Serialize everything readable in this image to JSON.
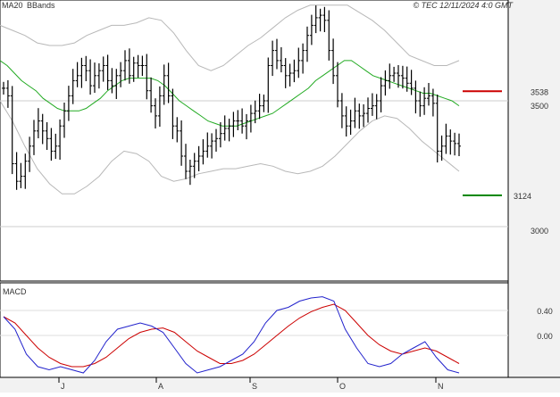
{
  "header": {
    "ma_label": "MA20",
    "bb_label": "BBands",
    "copyright": "© TEC 12/11/2024 4:0 GMT"
  },
  "price_panel": {
    "y_ticks": [
      "3500",
      "3000"
    ],
    "resistance": {
      "label": "3538",
      "value": 3538,
      "color": "#cc0000"
    },
    "support": {
      "label": "3124",
      "value": 3124,
      "color": "#008800"
    }
  },
  "macd_panel": {
    "title": "MACD",
    "y_ticks": [
      "0.40",
      "0.00"
    ]
  },
  "x_axis": {
    "months": [
      "J",
      "A",
      "S",
      "O",
      "N"
    ]
  },
  "colors": {
    "ma": "#22aa22",
    "bands": "#b8b8b8",
    "candles": "#000000",
    "macd": "#2222cc",
    "signal": "#cc0000",
    "axis_bg": "#ffffff",
    "chart_bg": "#ffffff"
  },
  "chart_data": [
    {
      "type": "line",
      "title": "",
      "y_ticks": [
        3000,
        3500
      ],
      "ylim": [
        2700,
        3920
      ],
      "months": [
        "J",
        "A",
        "S",
        "O",
        "N"
      ],
      "ohlc_close": [
        3550,
        3520,
        3250,
        3180,
        3200,
        3260,
        3320,
        3380,
        3420,
        3380,
        3350,
        3300,
        3320,
        3400,
        3460,
        3520,
        3580,
        3600,
        3640,
        3620,
        3560,
        3600,
        3620,
        3640,
        3580,
        3560,
        3600,
        3620,
        3660,
        3600,
        3650,
        3640,
        3640,
        3540,
        3480,
        3440,
        3520,
        3600,
        3520,
        3400,
        3380,
        3280,
        3220,
        3240,
        3260,
        3280,
        3300,
        3320,
        3340,
        3350,
        3370,
        3390,
        3400,
        3420,
        3420,
        3400,
        3420,
        3450,
        3460,
        3480,
        3500,
        3640,
        3700,
        3660,
        3640,
        3600,
        3610,
        3620,
        3660,
        3700,
        3760,
        3800,
        3830,
        3840,
        3820,
        3700,
        3600,
        3500,
        3440,
        3400,
        3420,
        3460,
        3440,
        3450,
        3470,
        3480,
        3500,
        3560,
        3580,
        3600,
        3610,
        3600,
        3590,
        3570,
        3550,
        3500,
        3480,
        3510,
        3520,
        3490,
        3300,
        3320,
        3360,
        3340,
        3330,
        3320
      ],
      "ma20": [
        3660,
        3640,
        3610,
        3580,
        3560,
        3540,
        3510,
        3490,
        3470,
        3460,
        3460,
        3460,
        3470,
        3490,
        3510,
        3540,
        3560,
        3580,
        3590,
        3590,
        3590,
        3590,
        3580,
        3560,
        3530,
        3500,
        3480,
        3460,
        3440,
        3420,
        3410,
        3400,
        3400,
        3400,
        3410,
        3420,
        3430,
        3440,
        3450,
        3470,
        3490,
        3510,
        3530,
        3550,
        3580,
        3600,
        3620,
        3640,
        3660,
        3660,
        3640,
        3620,
        3600,
        3590,
        3580,
        3570,
        3560,
        3550,
        3540,
        3530,
        3530,
        3520,
        3510,
        3500,
        3480
      ],
      "bb_upper": [
        3800,
        3780,
        3760,
        3730,
        3720,
        3720,
        3730,
        3760,
        3780,
        3800,
        3800,
        3810,
        3830,
        3820,
        3770,
        3700,
        3640,
        3620,
        3640,
        3680,
        3720,
        3750,
        3790,
        3830,
        3860,
        3880,
        3880,
        3880,
        3880,
        3850,
        3820,
        3780,
        3730,
        3680,
        3660,
        3640,
        3640,
        3660
      ],
      "bb_lower": [
        3500,
        3420,
        3320,
        3230,
        3170,
        3130,
        3130,
        3160,
        3200,
        3260,
        3300,
        3290,
        3260,
        3200,
        3180,
        3190,
        3210,
        3220,
        3230,
        3230,
        3240,
        3250,
        3240,
        3220,
        3210,
        3220,
        3240,
        3280,
        3330,
        3380,
        3420,
        3440,
        3430,
        3390,
        3340,
        3300,
        3260,
        3220
      ],
      "series": []
    },
    {
      "type": "line",
      "title": "MACD",
      "y_ticks": [
        0.0,
        0.4
      ],
      "ylim": [
        -0.8,
        0.75
      ],
      "series": [
        {
          "values": [
            0.3,
            0.1,
            -0.3,
            -0.5,
            -0.55,
            -0.5,
            -0.55,
            -0.6,
            -0.4,
            -0.1,
            0.1,
            0.15,
            0.2,
            0.15,
            0.05,
            -0.2,
            -0.45,
            -0.6,
            -0.55,
            -0.5,
            -0.4,
            -0.3,
            -0.1,
            0.2,
            0.4,
            0.45,
            0.55,
            0.6,
            0.62,
            0.55,
            0.1,
            -0.2,
            -0.45,
            -0.5,
            -0.45,
            -0.3,
            -0.2,
            -0.1,
            -0.35,
            -0.55,
            -0.6
          ]
        },
        {
          "values": [
            0.3,
            0.2,
            0.0,
            -0.2,
            -0.35,
            -0.45,
            -0.5,
            -0.5,
            -0.45,
            -0.35,
            -0.2,
            -0.05,
            0.05,
            0.1,
            0.12,
            0.05,
            -0.1,
            -0.25,
            -0.35,
            -0.45,
            -0.45,
            -0.4,
            -0.3,
            -0.15,
            0.0,
            0.15,
            0.28,
            0.38,
            0.45,
            0.5,
            0.4,
            0.2,
            0.0,
            -0.15,
            -0.25,
            -0.3,
            -0.25,
            -0.2,
            -0.25,
            -0.35,
            -0.45
          ]
        }
      ]
    }
  ]
}
